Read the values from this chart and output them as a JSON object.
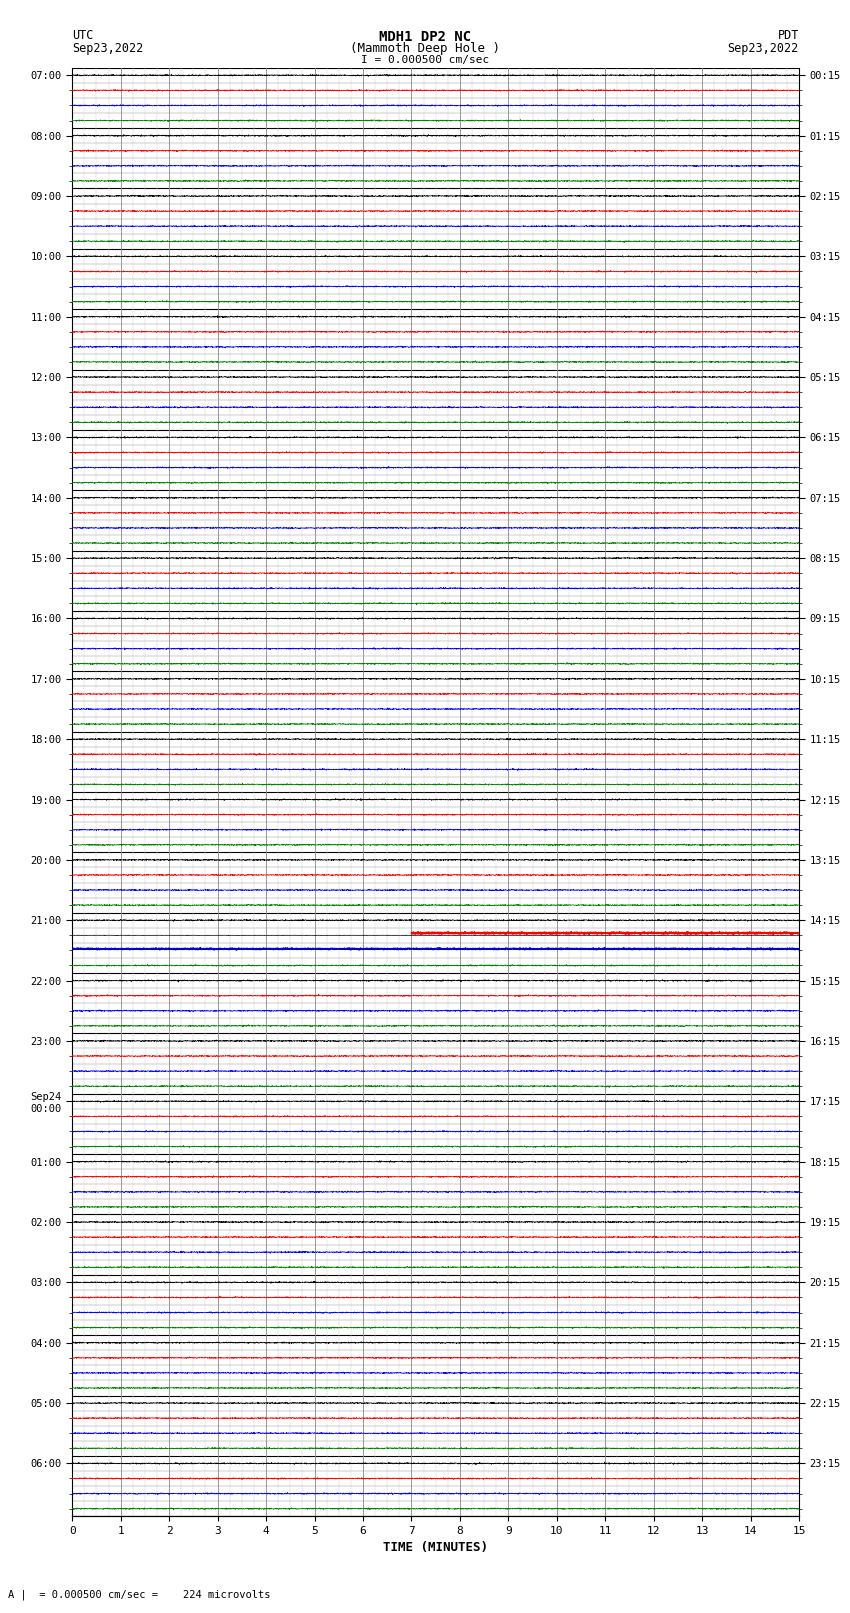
{
  "title_line1": "MDH1 DP2 NC",
  "title_line2": "(Mammoth Deep Hole )",
  "scale_text": "I = 0.000500 cm/sec",
  "left_header": "UTC",
  "left_date": "Sep23,2022",
  "right_header": "PDT",
  "right_date": "Sep23,2022",
  "xlabel": "TIME (MINUTES)",
  "bottom_text": "= 0.000500 cm/sec =    224 microvolts",
  "xlim": [
    0,
    15
  ],
  "n_rows": 96,
  "background_color": "#ffffff",
  "trace_color_cycle": [
    "#000000",
    "#ff0000",
    "#0000ff",
    "#008000"
  ],
  "special_row_red": 57,
  "special_row_blue": 58,
  "grid_major_color": "#000000",
  "grid_minor_color": "#aaaaaa",
  "fig_width": 8.5,
  "fig_height": 16.13,
  "noise_amp": 0.08,
  "utc_hour_labels": {
    "0": "07:00",
    "4": "08:00",
    "8": "09:00",
    "12": "10:00",
    "16": "11:00",
    "20": "12:00",
    "24": "13:00",
    "28": "14:00",
    "32": "15:00",
    "36": "16:00",
    "40": "17:00",
    "44": "18:00",
    "48": "19:00",
    "52": "20:00",
    "56": "21:00",
    "60": "22:00",
    "64": "23:00",
    "68": "Sep24\n00:00",
    "72": "01:00",
    "76": "02:00",
    "80": "03:00",
    "84": "04:00",
    "88": "05:00",
    "92": "06:00"
  },
  "pdt_hour_labels": {
    "0": "00:15",
    "4": "01:15",
    "8": "02:15",
    "12": "03:15",
    "16": "04:15",
    "20": "05:15",
    "24": "06:15",
    "28": "07:15",
    "32": "08:15",
    "36": "09:15",
    "40": "10:15",
    "44": "11:15",
    "48": "12:15",
    "52": "13:15",
    "56": "14:15",
    "60": "15:15",
    "64": "16:15",
    "68": "17:15",
    "72": "18:15",
    "76": "19:15",
    "80": "20:15",
    "84": "21:15",
    "88": "22:15",
    "92": "23:15"
  }
}
